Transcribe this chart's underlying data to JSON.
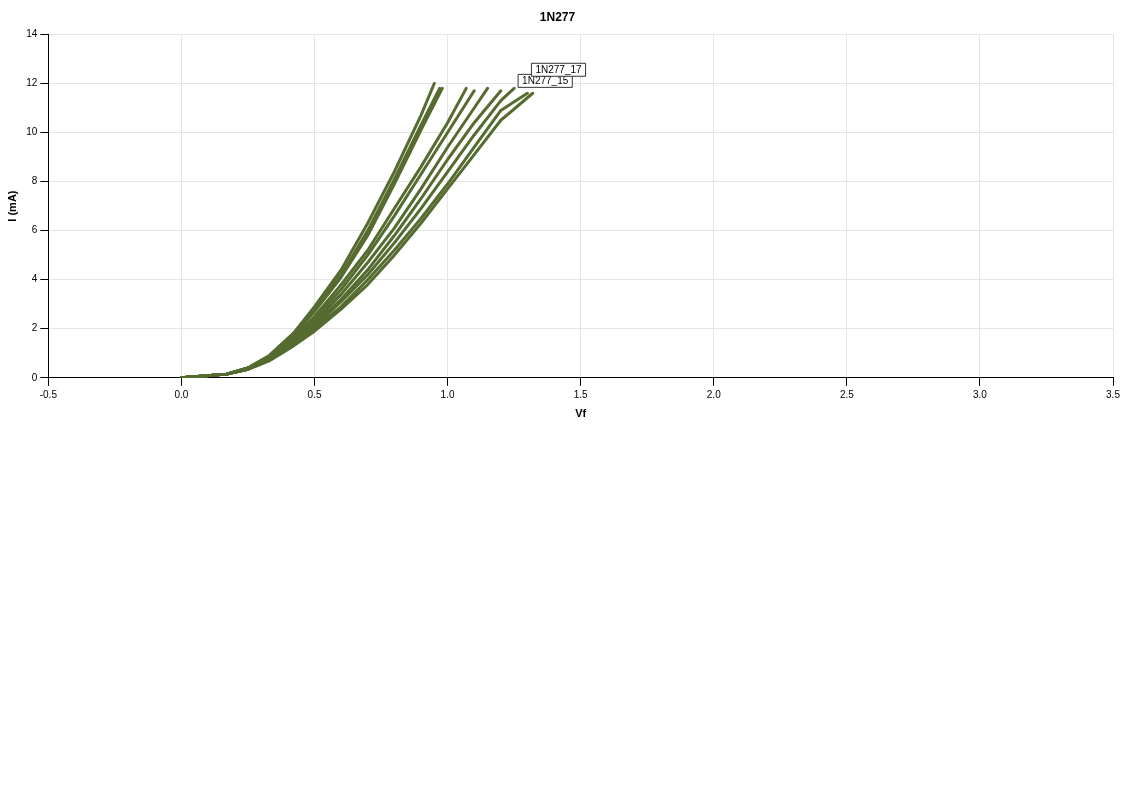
{
  "chart_data": {
    "type": "line",
    "title": "1N277",
    "xlabel": "Vf",
    "ylabel": "I (mA)",
    "xlim": [
      -0.5,
      3.5
    ],
    "ylim": [
      0,
      14
    ],
    "xticks": [
      {
        "value": -0.5,
        "label": "-0.5"
      },
      {
        "value": 0,
        "label": "0.0"
      },
      {
        "value": 0.5,
        "label": "0.5"
      },
      {
        "value": 1,
        "label": "1.0"
      },
      {
        "value": 1.5,
        "label": "1.5"
      },
      {
        "value": 2,
        "label": "2.0"
      },
      {
        "value": 2.5,
        "label": "2.5"
      },
      {
        "value": 3,
        "label": "3.0"
      },
      {
        "value": 3.5,
        "label": "3.5"
      }
    ],
    "yticks": [
      0,
      2,
      4,
      6,
      8,
      10,
      12,
      14
    ],
    "grid": true,
    "legend": false,
    "marker": "none",
    "line_style": "solid",
    "series": [
      {
        "color": "#556b2f",
        "x": [
          0,
          0.17,
          0.25,
          0.33,
          0.42,
          0.5,
          0.6,
          0.7,
          0.8,
          0.9,
          0.95
        ],
        "values": [
          0,
          0.15,
          0.4,
          0.9,
          1.8,
          2.9,
          4.4,
          6.3,
          8.4,
          10.7,
          12
        ]
      },
      {
        "color": "#556b2f",
        "x": [
          0,
          0.17,
          0.25,
          0.33,
          0.42,
          0.5,
          0.6,
          0.7,
          0.8,
          0.9,
          0.97
        ],
        "values": [
          0,
          0.15,
          0.4,
          0.9,
          1.8,
          2.8,
          4.2,
          6.0,
          8.1,
          10.3,
          11.8
        ]
      },
      {
        "color": "#556b2f",
        "x": [
          0,
          0.17,
          0.25,
          0.33,
          0.42,
          0.5,
          0.6,
          0.7,
          0.8,
          0.9,
          0.98
        ],
        "values": [
          0,
          0.15,
          0.4,
          0.85,
          1.7,
          2.7,
          4.1,
          5.8,
          7.9,
          10.1,
          11.8
        ]
      },
      {
        "color": "#556b2f",
        "x": [
          0,
          0.17,
          0.25,
          0.33,
          0.42,
          0.5,
          0.6,
          0.7,
          0.8,
          0.9,
          1.0,
          1.07
        ],
        "values": [
          0,
          0.15,
          0.4,
          0.85,
          1.6,
          2.5,
          3.8,
          5.2,
          6.9,
          8.6,
          10.4,
          11.8
        ]
      },
      {
        "color": "#556b2f",
        "x": [
          0,
          0.17,
          0.25,
          0.33,
          0.42,
          0.5,
          0.6,
          0.7,
          0.8,
          0.9,
          1.0,
          1.1
        ],
        "values": [
          0,
          0.15,
          0.4,
          0.85,
          1.6,
          2.4,
          3.6,
          5.0,
          6.6,
          8.3,
          10.0,
          11.7
        ]
      },
      {
        "color": "#556b2f",
        "x": [
          0,
          0.17,
          0.25,
          0.33,
          0.42,
          0.5,
          0.6,
          0.7,
          0.8,
          0.9,
          1.0,
          1.1,
          1.15
        ],
        "values": [
          0,
          0.15,
          0.35,
          0.8,
          1.5,
          2.3,
          3.4,
          4.7,
          6.1,
          7.7,
          9.4,
          11.0,
          11.8
        ]
      },
      {
        "color": "#556b2f",
        "x": [
          0,
          0.17,
          0.25,
          0.33,
          0.42,
          0.5,
          0.6,
          0.7,
          0.8,
          0.9,
          1.0,
          1.1,
          1.2
        ],
        "values": [
          0,
          0.15,
          0.35,
          0.75,
          1.4,
          2.2,
          3.2,
          4.4,
          5.8,
          7.3,
          8.9,
          10.4,
          11.7
        ]
      },
      {
        "color": "#556b2f",
        "name": "1N277_15",
        "x": [
          0,
          0.17,
          0.25,
          0.33,
          0.42,
          0.5,
          0.6,
          0.7,
          0.8,
          0.9,
          1.0,
          1.1,
          1.2,
          1.25
        ],
        "values": [
          0,
          0.15,
          0.35,
          0.75,
          1.4,
          2.1,
          3.1,
          4.2,
          5.5,
          6.9,
          8.4,
          9.9,
          11.3,
          11.8
        ]
      },
      {
        "color": "#556b2f",
        "name": "1N277_17",
        "x": [
          0,
          0.17,
          0.25,
          0.33,
          0.42,
          0.5,
          0.6,
          0.7,
          0.8,
          0.9,
          1.0,
          1.1,
          1.2,
          1.3
        ],
        "values": [
          0,
          0.15,
          0.35,
          0.7,
          1.3,
          2.0,
          2.9,
          4.0,
          5.2,
          6.5,
          7.9,
          9.4,
          10.9,
          11.6
        ]
      },
      {
        "color": "#556b2f",
        "x": [
          0,
          0.17,
          0.25,
          0.33,
          0.42,
          0.5,
          0.6,
          0.7,
          0.8,
          0.9,
          1.0,
          1.1,
          1.2,
          1.32
        ],
        "values": [
          0,
          0.15,
          0.35,
          0.7,
          1.3,
          1.9,
          2.8,
          3.8,
          5.0,
          6.3,
          7.7,
          9.1,
          10.5,
          11.6
        ]
      }
    ]
  }
}
